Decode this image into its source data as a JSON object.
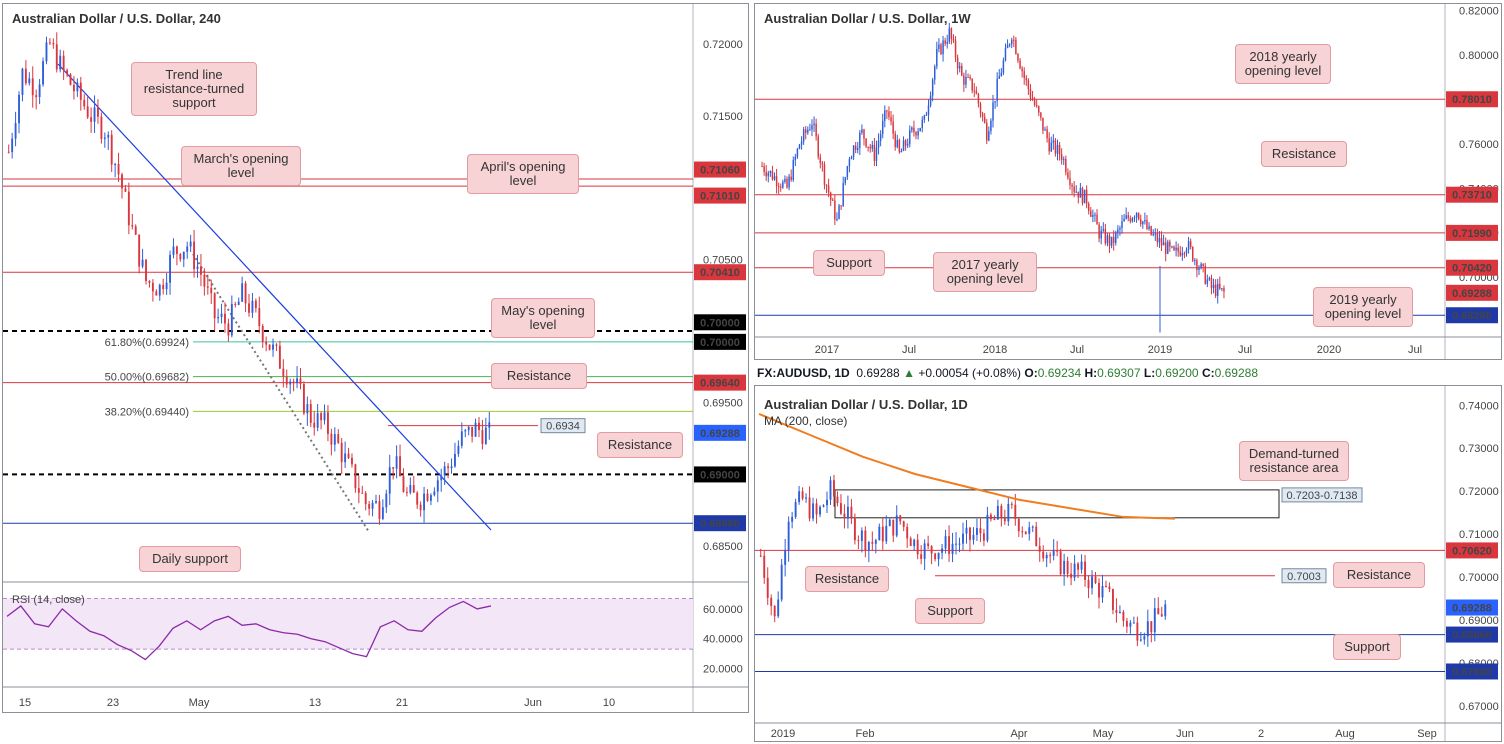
{
  "colors": {
    "up": "#2e5fd8",
    "down": "#d9363e",
    "resistance": "#d9363e",
    "support": "#1f3aa8",
    "trend": "#1c3fe0",
    "ma": "#f07d20",
    "rsi": "#8a2aa8",
    "fib618": "#3cbfa3",
    "fib50": "#4caf50",
    "fib382": "#9ccc33"
  },
  "panel_4h": {
    "title": "Australian Dollar / U.S. Dollar, 240",
    "y_labels": [
      "0.72000",
      "0.71500",
      "0.70500",
      "0.69500",
      "0.68500"
    ],
    "x_labels": [
      "15",
      "23",
      "May",
      "13",
      "21",
      "Jun",
      "10"
    ],
    "levels": [
      {
        "label": "0.71060",
        "kind": "res"
      },
      {
        "label": "0.71010",
        "kind": "res"
      },
      {
        "label": "0.70410",
        "kind": "res"
      },
      {
        "label": "0.70000",
        "kind": "round"
      },
      {
        "label": "0.70000",
        "kind": "round"
      },
      {
        "label": "0.69640",
        "kind": "res"
      },
      {
        "label": "0.69288",
        "kind": "price"
      },
      {
        "label": "0.69000",
        "kind": "round"
      },
      {
        "label": "0.68660",
        "kind": "sup"
      }
    ],
    "fibs": [
      "61.80%(0.69924)",
      "50.00%(0.69682)",
      "38.20%(0.69440)"
    ],
    "price_box": "0.6934",
    "callouts": {
      "trend": "Trend line resistance-turned support",
      "march": "March's opening level",
      "april": "April's opening level",
      "may": "May's opening level",
      "res1": "Resistance",
      "res2": "Resistance",
      "daily": "Daily support"
    },
    "rsi": {
      "title": "RSI (14, close)",
      "labels": [
        "60.0000",
        "40.0000",
        "20.0000"
      ]
    }
  },
  "panel_w": {
    "title": "Australian Dollar / U.S. Dollar, 1W",
    "y_labels": [
      "0.82000",
      "0.80000",
      "0.76000",
      "0.74000",
      "0.72000",
      "0.70000"
    ],
    "x_labels": [
      "2017",
      "Jul",
      "2018",
      "Jul",
      "2019",
      "Jul",
      "2020",
      "Jul"
    ],
    "levels": [
      {
        "label": "0.78010",
        "kind": "res"
      },
      {
        "label": "0.73710",
        "kind": "res"
      },
      {
        "label": "0.71990",
        "kind": "res"
      },
      {
        "label": "0.70420",
        "kind": "res"
      },
      {
        "label": "0.69288",
        "kind": "res"
      },
      {
        "label": "0.68280",
        "kind": "sup"
      }
    ],
    "callouts": {
      "y2018": "2018 yearly opening level",
      "resistance": "Resistance",
      "support": "Support",
      "y2017": "2017 yearly opening level",
      "y2019": "2019 yearly opening level"
    }
  },
  "info": {
    "symbol": "FX:AUDUSD, 1D",
    "last": "0.69288",
    "change": "+0.00054 (+0.08%)",
    "o_label": "O:",
    "o": "0.69234",
    "h_label": "H:",
    "h": "0.69307",
    "l_label": "L:",
    "l": "0.69200",
    "c_label": "C:",
    "c": "0.69288"
  },
  "panel_d": {
    "title": "Australian Dollar / U.S. Dollar, 1D",
    "ma_label": "MA (200, close)",
    "y_labels": [
      "0.74000",
      "0.73000",
      "0.72000",
      "0.71000",
      "0.70000",
      "0.69000",
      "0.68000",
      "0.67000"
    ],
    "x_labels": [
      "2019",
      "Feb",
      "Apr",
      "May",
      "Jun",
      "2",
      "Aug",
      "Sep"
    ],
    "levels": [
      {
        "label": "0.70620",
        "kind": "res"
      },
      {
        "label": "0.69288",
        "kind": "price"
      },
      {
        "label": "0.68660",
        "kind": "sup"
      },
      {
        "label": "0.67800",
        "kind": "sup"
      }
    ],
    "zone_label": "0.7203-0.7138",
    "res_box": "0.7003",
    "callouts": {
      "demand": "Demand-turned resistance area",
      "res_left": "Resistance",
      "res_right": "Resistance",
      "support_left": "Support",
      "support_right": "Support"
    }
  },
  "chart_data": [
    {
      "type": "candlestick",
      "title": "Australian Dollar / U.S. Dollar, 240",
      "ylim": [
        0.6825,
        0.7228
      ],
      "x_ticks": [
        "15",
        "23",
        "May",
        "13",
        "21",
        "Jun",
        "10"
      ],
      "close_path": [
        0.7125,
        0.718,
        0.717,
        0.72,
        0.718,
        0.7165,
        0.715,
        0.714,
        0.711,
        0.707,
        0.7035,
        0.703,
        0.7055,
        0.706,
        0.704,
        0.701,
        0.7005,
        0.7025,
        0.701,
        0.699,
        0.6975,
        0.696,
        0.694,
        0.6935,
        0.692,
        0.69,
        0.688,
        0.6878,
        0.691,
        0.6885,
        0.6883,
        0.6895,
        0.6905,
        0.6925,
        0.6932,
        0.6928
      ],
      "horizontal_levels": [
        0.7106,
        0.7101,
        0.7041,
        0.7,
        0.6964,
        0.6929,
        0.69,
        0.6866
      ],
      "fib_levels": {
        "61.8%": 0.69924,
        "50.0%": 0.69682,
        "38.2%": 0.6944
      },
      "rsi": {
        "title": "RSI (14, close)",
        "ylim": [
          15,
          70
        ],
        "values": [
          55,
          62,
          50,
          48,
          60,
          52,
          45,
          42,
          36,
          32,
          26,
          35,
          47,
          52,
          46,
          52,
          55,
          49,
          50,
          46,
          44,
          43,
          40,
          38,
          34,
          30,
          28,
          48,
          52,
          46,
          45,
          54,
          61,
          65,
          60,
          62
        ]
      }
    },
    {
      "type": "candlestick",
      "title": "Australian Dollar / U.S. Dollar, 1W",
      "ylim": [
        0.673,
        0.823
      ],
      "x_ticks": [
        "2017",
        "Jul",
        "2018",
        "Jul",
        "2019",
        "Jul",
        "2020",
        "Jul"
      ],
      "close_path": [
        0.75,
        0.745,
        0.74,
        0.76,
        0.77,
        0.745,
        0.725,
        0.755,
        0.765,
        0.755,
        0.775,
        0.755,
        0.765,
        0.77,
        0.8,
        0.81,
        0.79,
        0.785,
        0.765,
        0.79,
        0.81,
        0.79,
        0.775,
        0.76,
        0.755,
        0.74,
        0.735,
        0.72,
        0.715,
        0.725,
        0.73,
        0.72,
        0.715,
        0.71,
        0.715,
        0.705,
        0.695,
        0.6929
      ],
      "horizontal_levels": [
        0.7801,
        0.7371,
        0.7199,
        0.7042,
        0.6929,
        0.6828
      ]
    },
    {
      "type": "candlestick",
      "title": "Australian Dollar / U.S. Dollar, 1D",
      "ylim": [
        0.666,
        0.7445
      ],
      "x_ticks": [
        "2019",
        "Feb",
        "Apr",
        "May",
        "Jun",
        "2",
        "Aug",
        "Sep"
      ],
      "close_path": [
        0.705,
        0.69,
        0.715,
        0.718,
        0.714,
        0.72,
        0.715,
        0.71,
        0.708,
        0.711,
        0.713,
        0.708,
        0.706,
        0.707,
        0.708,
        0.709,
        0.711,
        0.714,
        0.715,
        0.711,
        0.708,
        0.704,
        0.702,
        0.701,
        0.698,
        0.695,
        0.69,
        0.688,
        0.689,
        0.6929
      ],
      "series": [
        {
          "name": "MA (200, close)",
          "values": [
            0.738,
            0.733,
            0.728,
            0.724,
            0.721,
            0.718,
            0.716,
            0.714,
            0.7136
          ]
        }
      ],
      "horizontal_levels": [
        0.7062,
        0.7003,
        0.6929,
        0.6866,
        0.678
      ],
      "zone": [
        0.7138,
        0.7203
      ]
    }
  ]
}
